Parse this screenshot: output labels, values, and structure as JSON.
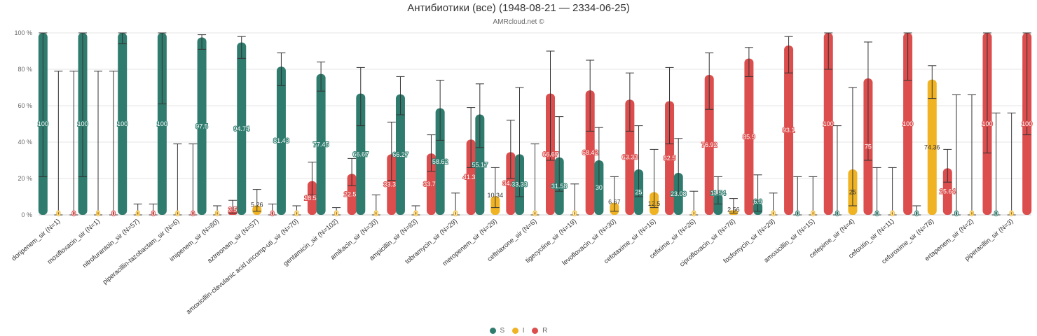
{
  "chart_data": {
    "type": "bar",
    "title": "Антибиотики (все) (1948-08-21 — 2334-06-25)",
    "subtitle": "AMRcloud.net ©",
    "y_tick_labels": [
      "0 %",
      "20 %",
      "40 %",
      "60 %",
      "80 %",
      "100 %"
    ],
    "ylim": [
      0,
      100
    ],
    "grid": true,
    "legend_position": "bottom-center",
    "categories": [
      "doripenem_sir (N=1)",
      "moxifloxacin_sir (N=1)",
      "nitrofurantoin_sir (N=57)",
      "piperacillin-tazobactam_sir (N=6)",
      "imipenem_sir (N=80)",
      "aztreonam_sir (N=57)",
      "amoxicillin-clavulanic acid uncomp-uti_sir (N=70)",
      "gentamicin_sir (N=102)",
      "amikacin_sir (N=30)",
      "ampicillin_sir (N=83)",
      "tobramycin_sir (N=29)",
      "meropenem_sir (N=29)",
      "ceftriaxone_sir (N=6)",
      "tigecycline_sir (N=19)",
      "levofloxacin_sir (N=30)",
      "cefotaxime_sir (N=16)",
      "cefixime_sir (N=26)",
      "ciprofloxacin_sir (N=78)",
      "fosfomycin_sir (N=29)",
      "amoxicillin_sir (N=15)",
      "cefepime_sir (N=4)",
      "cefoxitin_sir (N=11)",
      "cefuroxime_sir (N=78)",
      "ertapenem_sir (N=2)",
      "piperacillin_sir (N=3)"
    ],
    "series": [
      {
        "name": "S",
        "color": "#2f7c6e",
        "values": [
          100,
          100,
          100,
          100,
          97.5,
          94.74,
          81.43,
          77.45,
          66.67,
          66.27,
          58.62,
          55.17,
          33.33,
          31.58,
          30,
          25,
          23.08,
          11.54,
          6.9,
          0,
          0,
          0,
          0,
          0,
          0
        ],
        "labels": [
          "100",
          "100",
          "100",
          "100",
          "97.5",
          "94.74",
          "81.43",
          "77.45",
          "66.67",
          "66.27",
          "58.62",
          "55.17",
          "33.33",
          "31.58",
          "30",
          "25",
          "23.08",
          "11.54",
          "6.9",
          "0",
          "0",
          "0",
          "0",
          "0",
          "0"
        ],
        "ci_low": [
          21,
          21,
          94,
          61,
          91,
          86,
          71,
          68,
          49,
          55,
          41,
          37,
          10,
          13,
          15,
          10,
          11,
          6,
          2,
          0,
          0,
          0,
          0,
          0,
          0
        ],
        "ci_high": [
          100,
          100,
          100,
          100,
          99,
          98,
          89,
          84,
          81,
          76,
          74,
          72,
          70,
          54,
          48,
          49,
          42,
          21,
          22,
          21,
          49,
          26,
          5,
          66,
          56
        ]
      },
      {
        "name": "I",
        "color": "#f0b323",
        "values": [
          0,
          0,
          0,
          0,
          0,
          5.26,
          0,
          0,
          0,
          0,
          0,
          10.34,
          0,
          0,
          6.67,
          12.5,
          0,
          2.56,
          0,
          0,
          25,
          0,
          74.36,
          0,
          0
        ],
        "labels": [
          "0",
          "0",
          "0",
          "0",
          "0",
          "5.26",
          "0",
          "0",
          "0",
          "0",
          "0",
          "10.34",
          "0",
          "0",
          "6.67",
          "12.5",
          "0",
          "2.56",
          "0",
          "0",
          "25",
          "0",
          "74.36",
          "0",
          "0"
        ],
        "ci_low": [
          0,
          0,
          0,
          0,
          0,
          2,
          0,
          0,
          0,
          0,
          0,
          4,
          0,
          0,
          2,
          4,
          0,
          1,
          0,
          0,
          5,
          0,
          64,
          0,
          0
        ],
        "ci_high": [
          79,
          79,
          6,
          39,
          5,
          14,
          5,
          4,
          11,
          5,
          12,
          26,
          39,
          17,
          21,
          36,
          13,
          9,
          12,
          21,
          70,
          26,
          82,
          66,
          56
        ]
      },
      {
        "name": "R",
        "color": "#dc4d4d",
        "values": [
          0,
          0,
          0,
          0,
          2.5,
          0,
          18.57,
          22.55,
          33.33,
          33.73,
          41.38,
          34.48,
          66.67,
          68.42,
          63.33,
          62.5,
          76.92,
          85.9,
          93.1,
          100,
          75,
          100,
          25.64,
          100,
          100
        ],
        "labels": [
          "0",
          "0",
          "0",
          "0",
          "2.5",
          "0",
          "18.57",
          "22.55",
          "33.33",
          "33.73",
          "41.38",
          "34.48",
          "66.67",
          "68.42",
          "63.33",
          "62.5",
          "76.92",
          "85.9",
          "93.1",
          "100",
          "75",
          "100",
          "25.64",
          "100",
          "100"
        ],
        "ci_low": [
          0,
          0,
          0,
          0,
          1,
          0,
          11,
          16,
          19,
          24,
          26,
          20,
          30,
          46,
          46,
          39,
          58,
          76,
          78,
          80,
          30,
          74,
          18,
          34,
          44
        ],
        "ci_high": [
          79,
          79,
          6,
          39,
          8,
          6,
          29,
          31,
          51,
          44,
          59,
          52,
          90,
          85,
          78,
          81,
          89,
          92,
          98,
          100,
          95,
          100,
          36,
          100,
          100
        ]
      }
    ]
  },
  "legend": {
    "items": [
      {
        "label": "S",
        "color": "#2f7c6e"
      },
      {
        "label": "I",
        "color": "#f0b323"
      },
      {
        "label": "R",
        "color": "#dc4d4d"
      }
    ]
  }
}
